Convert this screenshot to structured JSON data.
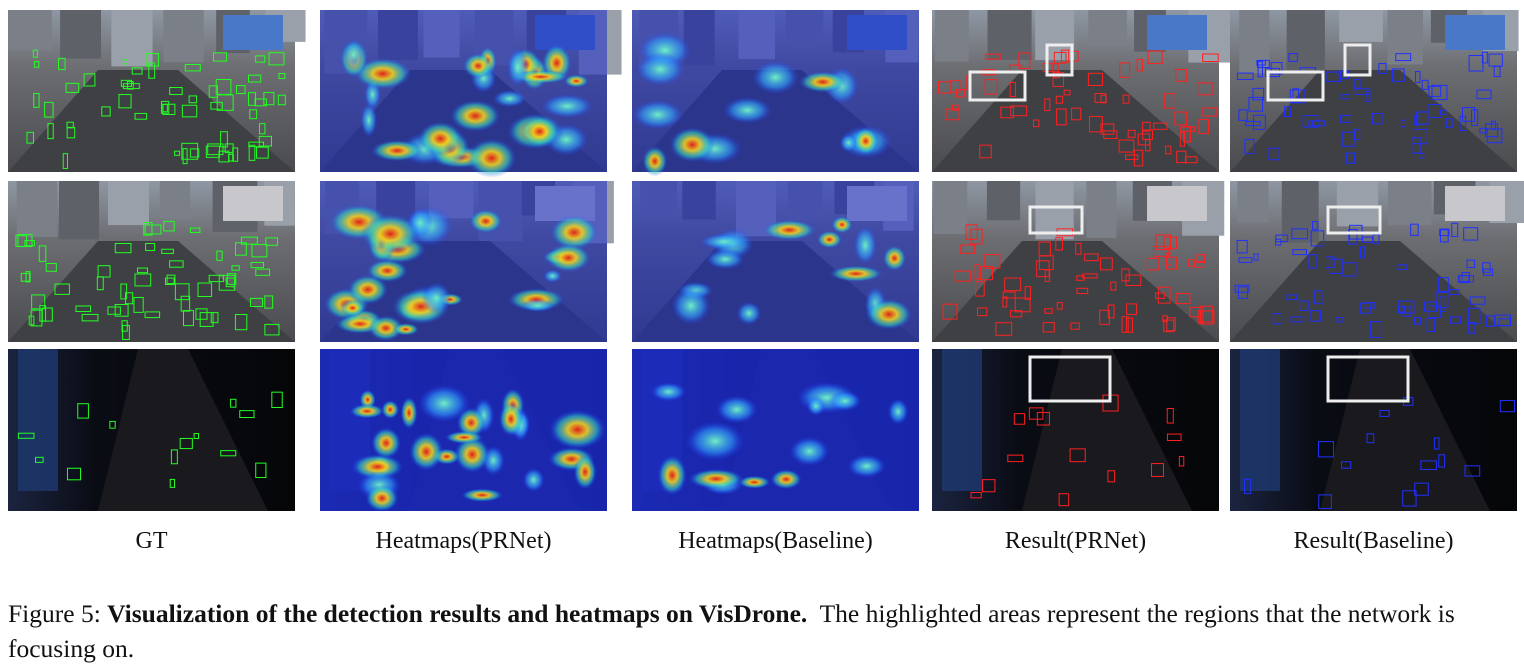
{
  "figure": {
    "columns": [
      "GT",
      "Heatmaps(PRNet)",
      "Heatmaps(Baseline)",
      "Result(PRNet)",
      "Result(Baseline)"
    ],
    "caption": {
      "label": "Figure 5:",
      "title": "Visualization of the detection results and heatmaps on VisDrone.",
      "text": "The highlighted areas represent the regions that the network is focusing on."
    }
  }
}
